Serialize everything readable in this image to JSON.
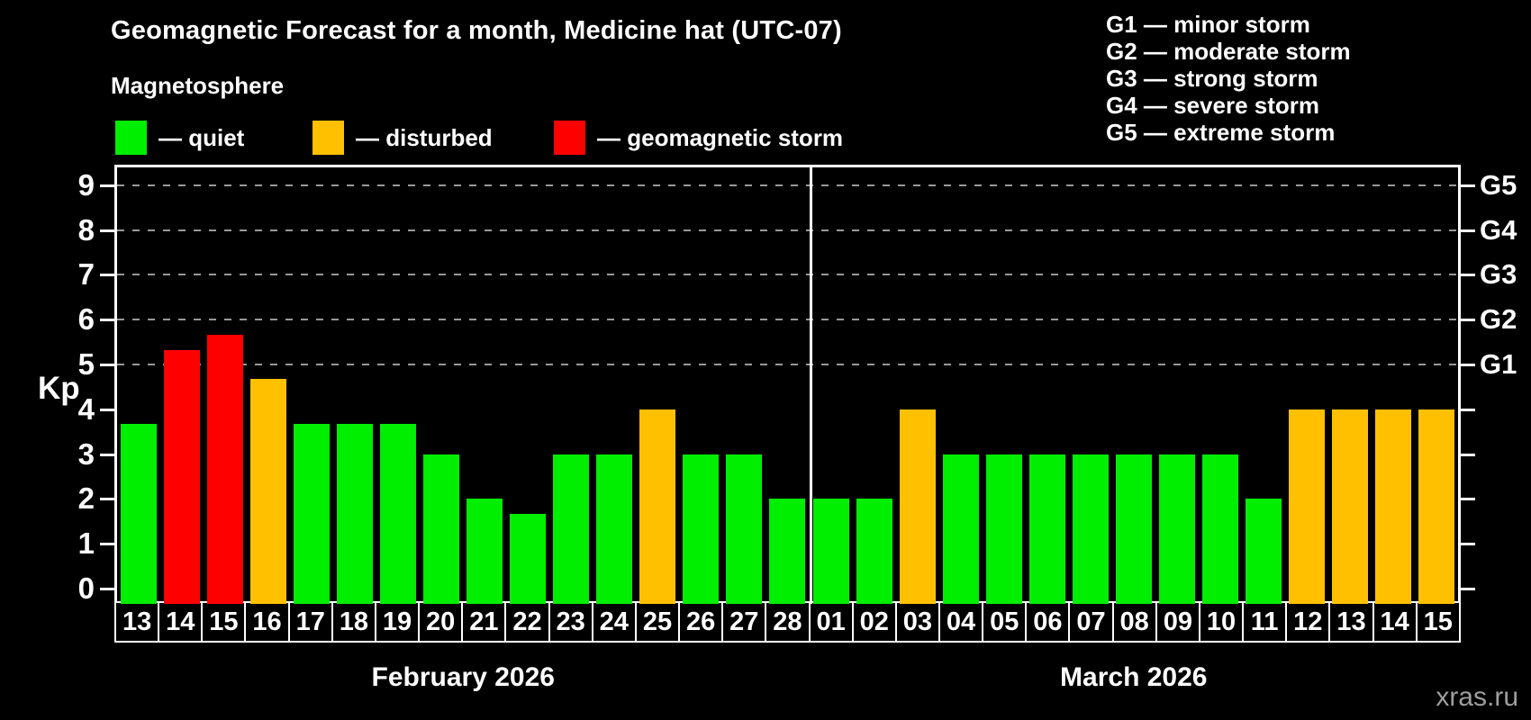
{
  "title": "Geomagnetic Forecast for a month, Medicine hat (UTC-07)",
  "subtitle": "Magnetosphere",
  "legend": [
    {
      "label": "— quiet",
      "status": "quiet",
      "color": "#00ee00"
    },
    {
      "label": "— disturbed",
      "status": "disturbed",
      "color": "#ffc000"
    },
    {
      "label": "— geomagnetic storm",
      "status": "storm",
      "color": "#ff0000"
    }
  ],
  "g_scale_legend": [
    "G1 — minor storm",
    "G2 — moderate storm",
    "G3 — strong storm",
    "G4 — severe storm",
    "G5 — extreme storm"
  ],
  "watermark": "xras.ru",
  "colors": {
    "background": "#000000",
    "axis": "#ffffff",
    "gridline": "#999999",
    "quiet": "#00ee00",
    "disturbed": "#ffc000",
    "storm": "#ff0000",
    "watermark": "#9e9e9e"
  },
  "chart_data": {
    "type": "bar",
    "title": "Geomagnetic Forecast for a month, Medicine hat (UTC-07)",
    "ylabel": "Kp",
    "ylim": [
      0,
      9.4
    ],
    "yticks": [
      0,
      1,
      2,
      3,
      4,
      5,
      6,
      7,
      8,
      9
    ],
    "gridlines_at_kp": [
      5,
      6,
      7,
      8,
      9
    ],
    "grid_style": "dashed horizontal lines at storm levels only",
    "right_axis_labels": [
      {
        "label": "G1",
        "kp": 5
      },
      {
        "label": "G2",
        "kp": 6
      },
      {
        "label": "G3",
        "kp": 7
      },
      {
        "label": "G4",
        "kp": 8
      },
      {
        "label": "G5",
        "kp": 9
      }
    ],
    "legend_position": "top-left",
    "months": [
      {
        "label": "February 2026",
        "days": [
          {
            "day": "13",
            "kp": 3.67,
            "status": "quiet"
          },
          {
            "day": "14",
            "kp": 5.33,
            "status": "storm"
          },
          {
            "day": "15",
            "kp": 5.67,
            "status": "storm"
          },
          {
            "day": "16",
            "kp": 4.67,
            "status": "disturbed"
          },
          {
            "day": "17",
            "kp": 3.67,
            "status": "quiet"
          },
          {
            "day": "18",
            "kp": 3.67,
            "status": "quiet"
          },
          {
            "day": "19",
            "kp": 3.67,
            "status": "quiet"
          },
          {
            "day": "20",
            "kp": 3,
            "status": "quiet"
          },
          {
            "day": "21",
            "kp": 2,
            "status": "quiet"
          },
          {
            "day": "22",
            "kp": 1.67,
            "status": "quiet"
          },
          {
            "day": "23",
            "kp": 3,
            "status": "quiet"
          },
          {
            "day": "24",
            "kp": 3,
            "status": "quiet"
          },
          {
            "day": "25",
            "kp": 4,
            "status": "disturbed"
          },
          {
            "day": "26",
            "kp": 3,
            "status": "quiet"
          },
          {
            "day": "27",
            "kp": 3,
            "status": "quiet"
          },
          {
            "day": "28",
            "kp": 2,
            "status": "quiet"
          }
        ]
      },
      {
        "label": "March 2026",
        "days": [
          {
            "day": "01",
            "kp": 2,
            "status": "quiet"
          },
          {
            "day": "02",
            "kp": 2,
            "status": "quiet"
          },
          {
            "day": "03",
            "kp": 4,
            "status": "disturbed"
          },
          {
            "day": "04",
            "kp": 3,
            "status": "quiet"
          },
          {
            "day": "05",
            "kp": 3,
            "status": "quiet"
          },
          {
            "day": "06",
            "kp": 3,
            "status": "quiet"
          },
          {
            "day": "07",
            "kp": 3,
            "status": "quiet"
          },
          {
            "day": "08",
            "kp": 3,
            "status": "quiet"
          },
          {
            "day": "09",
            "kp": 3,
            "status": "quiet"
          },
          {
            "day": "10",
            "kp": 3,
            "status": "quiet"
          },
          {
            "day": "11",
            "kp": 2,
            "status": "quiet"
          },
          {
            "day": "12",
            "kp": 4,
            "status": "disturbed"
          },
          {
            "day": "13",
            "kp": 4,
            "status": "disturbed"
          },
          {
            "day": "14",
            "kp": 4,
            "status": "disturbed"
          },
          {
            "day": "15",
            "kp": 4,
            "status": "disturbed"
          }
        ]
      }
    ]
  }
}
